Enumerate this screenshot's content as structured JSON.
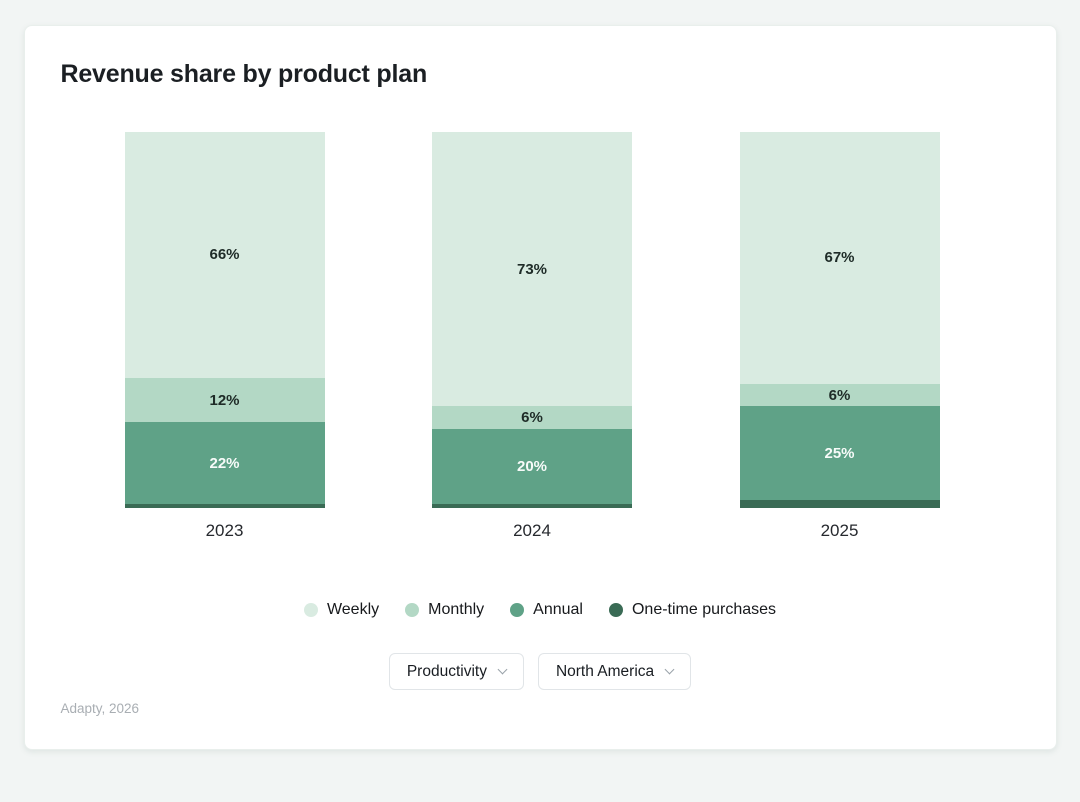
{
  "page": {
    "background": "#f2f5f4"
  },
  "card": {
    "footer": "Adapty, 2026"
  },
  "chart_data": {
    "type": "bar",
    "stacked": true,
    "orientation": "vertical",
    "title": "Revenue share by product plan",
    "unit": "%",
    "grid": false,
    "legend_position": "bottom",
    "categories": [
      "2023",
      "2024",
      "2025"
    ],
    "series": [
      {
        "name": "Weekly",
        "color": "#d9ebe1",
        "values": [
          66,
          73,
          67
        ],
        "data_labels": [
          "66%",
          "73%",
          "67%"
        ],
        "label_color": "#1e2b27"
      },
      {
        "name": "Monthly",
        "color": "#b3d8c5",
        "values": [
          12,
          6,
          6
        ],
        "data_labels": [
          "12%",
          "6%",
          "6%"
        ],
        "label_color": "#1e2b27"
      },
      {
        "name": "Annual",
        "color": "#5fa287",
        "values": [
          22,
          20,
          25
        ],
        "data_labels": [
          "22%",
          "20%",
          "25%"
        ],
        "label_color": "#f7fbf9"
      },
      {
        "name": "One-time purchases",
        "color": "#3a6b55",
        "values": [
          1,
          1,
          2
        ],
        "data_labels": [
          "",
          "",
          ""
        ],
        "label_color": "#ffffff"
      }
    ]
  },
  "filters": [
    {
      "name": "category-filter",
      "label": "Productivity"
    },
    {
      "name": "region-filter",
      "label": "North America"
    }
  ]
}
